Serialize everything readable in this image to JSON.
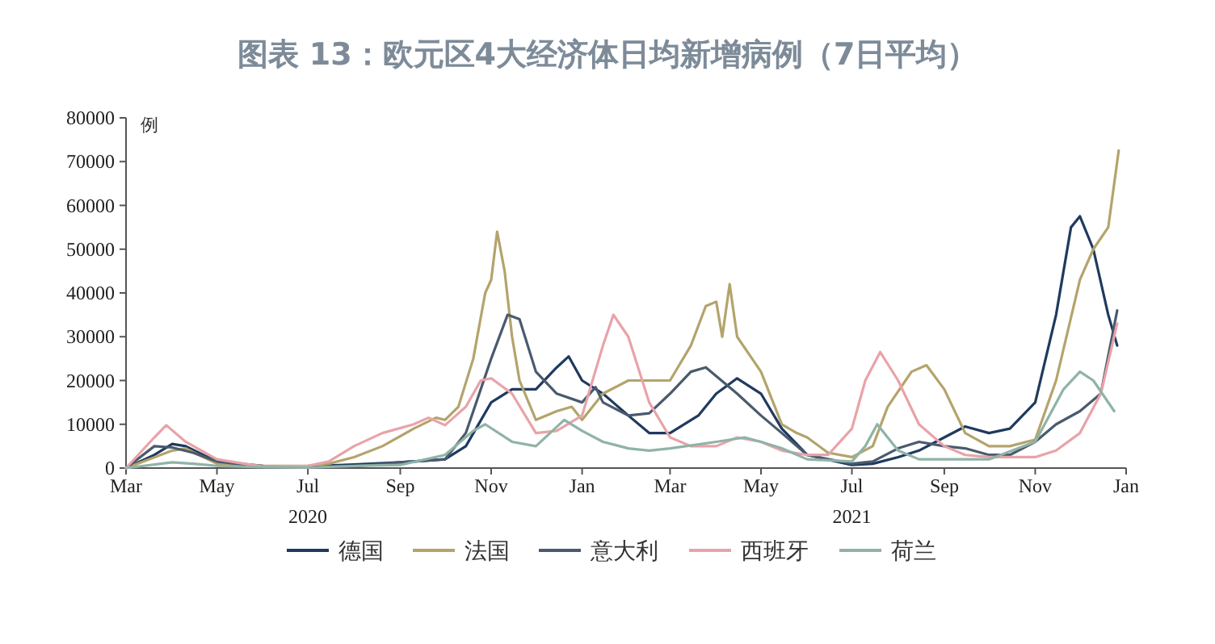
{
  "chart_data": {
    "type": "line",
    "title": "图表 13：欧元区4大经济体日均新增病例（7日平均）",
    "ylabel": "例",
    "xlim": [
      "2020-03-01",
      "2022-01-01"
    ],
    "xticks": [
      {
        "value": "2020-03-01",
        "label": "Mar"
      },
      {
        "value": "2020-05-01",
        "label": "May"
      },
      {
        "value": "2020-07-01",
        "label": "Jul\n2020"
      },
      {
        "value": "2020-09-01",
        "label": "Sep"
      },
      {
        "value": "2020-11-01",
        "label": "Nov"
      },
      {
        "value": "2021-01-01",
        "label": "Jan"
      },
      {
        "value": "2021-03-01",
        "label": "Mar"
      },
      {
        "value": "2021-05-01",
        "label": "May"
      },
      {
        "value": "2021-07-01",
        "label": "Jul\n2021"
      },
      {
        "value": "2021-09-01",
        "label": "Sep"
      },
      {
        "value": "2021-11-01",
        "label": "Nov"
      },
      {
        "value": "2022-01-01",
        "label": "Jan"
      }
    ],
    "ylim": [
      0,
      80000
    ],
    "yticks": [
      0,
      10000,
      20000,
      30000,
      40000,
      50000,
      60000,
      70000,
      80000
    ],
    "grid": false,
    "legend": "bottom",
    "marker": "none",
    "line_style": "solid",
    "series": [
      {
        "name": "德国",
        "color": "#1f3a5f",
        "x": [
          "2020-03-01",
          "2020-03-20",
          "2020-04-01",
          "2020-04-10",
          "2020-05-01",
          "2020-06-01",
          "2020-07-01",
          "2020-08-01",
          "2020-09-01",
          "2020-10-01",
          "2020-10-15",
          "2020-11-01",
          "2020-11-15",
          "2020-12-01",
          "2020-12-15",
          "2020-12-23",
          "2021-01-01",
          "2021-01-15",
          "2021-02-01",
          "2021-02-15",
          "2021-03-01",
          "2021-03-20",
          "2021-04-01",
          "2021-04-15",
          "2021-05-01",
          "2021-05-15",
          "2021-06-01",
          "2021-07-01",
          "2021-07-15",
          "2021-08-01",
          "2021-08-15",
          "2021-09-01",
          "2021-09-15",
          "2021-10-01",
          "2021-10-15",
          "2021-11-01",
          "2021-11-15",
          "2021-11-25",
          "2021-12-01",
          "2021-12-10",
          "2021-12-20",
          "2021-12-26"
        ],
        "values": [
          0,
          3000,
          5500,
          5000,
          1500,
          500,
          400,
          800,
          1300,
          2000,
          5000,
          15000,
          18000,
          18000,
          23000,
          25500,
          20000,
          17000,
          12000,
          8000,
          8000,
          12000,
          17000,
          20500,
          17000,
          9000,
          3000,
          700,
          1000,
          2500,
          4000,
          7000,
          9500,
          8000,
          9000,
          15000,
          35000,
          55000,
          57500,
          50000,
          35000,
          28000
        ]
      },
      {
        "name": "法国",
        "color": "#b3a46c",
        "x": [
          "2020-03-01",
          "2020-04-01",
          "2020-04-10",
          "2020-05-01",
          "2020-06-01",
          "2020-07-01",
          "2020-07-15",
          "2020-08-01",
          "2020-08-20",
          "2020-09-10",
          "2020-09-25",
          "2020-10-01",
          "2020-10-10",
          "2020-10-20",
          "2020-10-28",
          "2020-11-01",
          "2020-11-05",
          "2020-11-10",
          "2020-11-15",
          "2020-11-20",
          "2020-12-01",
          "2020-12-15",
          "2020-12-25",
          "2021-01-01",
          "2021-01-15",
          "2021-02-01",
          "2021-02-15",
          "2021-03-01",
          "2021-03-15",
          "2021-03-25",
          "2021-04-01",
          "2021-04-05",
          "2021-04-10",
          "2021-04-15",
          "2021-05-01",
          "2021-05-15",
          "2021-05-25",
          "2021-06-01",
          "2021-06-15",
          "2021-07-01",
          "2021-07-15",
          "2021-07-25",
          "2021-08-10",
          "2021-08-20",
          "2021-09-01",
          "2021-09-15",
          "2021-10-01",
          "2021-10-15",
          "2021-11-01",
          "2021-11-15",
          "2021-12-01",
          "2021-12-10",
          "2021-12-20",
          "2021-12-27"
        ],
        "values": [
          0,
          4000,
          4500,
          1000,
          500,
          500,
          1000,
          2500,
          5000,
          9000,
          11500,
          11000,
          14000,
          25000,
          40000,
          43000,
          54000,
          45000,
          30000,
          20000,
          11000,
          13000,
          14000,
          11000,
          17000,
          20000,
          20000,
          20000,
          28000,
          37000,
          38000,
          30000,
          42000,
          30000,
          22000,
          10000,
          8000,
          7000,
          3500,
          2500,
          5000,
          14000,
          22000,
          23500,
          18000,
          8000,
          5000,
          5000,
          6500,
          20000,
          43000,
          50000,
          55000,
          72500
        ]
      },
      {
        "name": "意大利",
        "color": "#4a5a6e",
        "x": [
          "2020-03-01",
          "2020-03-20",
          "2020-04-01",
          "2020-04-15",
          "2020-05-01",
          "2020-06-01",
          "2020-07-01",
          "2020-08-01",
          "2020-09-01",
          "2020-10-01",
          "2020-10-15",
          "2020-11-01",
          "2020-11-12",
          "2020-11-20",
          "2020-12-01",
          "2020-12-15",
          "2021-01-01",
          "2021-01-10",
          "2021-01-15",
          "2021-02-01",
          "2021-02-15",
          "2021-03-01",
          "2021-03-15",
          "2021-03-25",
          "2021-04-15",
          "2021-05-01",
          "2021-05-15",
          "2021-06-01",
          "2021-07-01",
          "2021-07-15",
          "2021-08-01",
          "2021-08-15",
          "2021-09-01",
          "2021-09-15",
          "2021-10-01",
          "2021-10-15",
          "2021-11-01",
          "2021-11-15",
          "2021-12-01",
          "2021-12-15",
          "2021-12-26"
        ],
        "values": [
          0,
          5000,
          4700,
          3500,
          1500,
          300,
          200,
          400,
          1300,
          2000,
          8000,
          25000,
          35000,
          34000,
          22000,
          17000,
          15000,
          18500,
          15000,
          12000,
          12500,
          17000,
          22000,
          23000,
          17000,
          12000,
          8000,
          3000,
          1000,
          1500,
          4500,
          6000,
          5000,
          4500,
          3000,
          3000,
          6000,
          10000,
          13000,
          17000,
          36000
        ]
      },
      {
        "name": "西班牙",
        "color": "#e8a3a8",
        "x": [
          "2020-03-01",
          "2020-03-20",
          "2020-03-28",
          "2020-04-10",
          "2020-05-01",
          "2020-06-01",
          "2020-07-01",
          "2020-07-15",
          "2020-08-01",
          "2020-08-20",
          "2020-09-10",
          "2020-09-20",
          "2020-10-01",
          "2020-10-15",
          "2020-10-25",
          "2020-11-01",
          "2020-11-15",
          "2020-12-01",
          "2020-12-15",
          "2021-01-01",
          "2021-01-15",
          "2021-01-22",
          "2021-02-01",
          "2021-02-15",
          "2021-03-01",
          "2021-03-15",
          "2021-04-01",
          "2021-04-15",
          "2021-05-01",
          "2021-05-15",
          "2021-06-01",
          "2021-06-15",
          "2021-07-01",
          "2021-07-10",
          "2021-07-20",
          "2021-08-01",
          "2021-08-15",
          "2021-09-01",
          "2021-09-15",
          "2021-10-01",
          "2021-10-15",
          "2021-11-01",
          "2021-11-15",
          "2021-12-01",
          "2021-12-15",
          "2021-12-26"
        ],
        "values": [
          0,
          7000,
          9800,
          6000,
          2000,
          300,
          500,
          1500,
          5000,
          8000,
          10000,
          11500,
          9800,
          14000,
          20000,
          20500,
          17000,
          8000,
          8500,
          12000,
          28000,
          35000,
          30000,
          15000,
          7000,
          5000,
          5000,
          7000,
          6000,
          4000,
          3000,
          3000,
          9000,
          20000,
          26500,
          20000,
          10000,
          5000,
          3000,
          2500,
          2500,
          2500,
          4000,
          8000,
          17000,
          33000
        ]
      },
      {
        "name": "荷兰",
        "color": "#8fb3a8",
        "x": [
          "2020-03-01",
          "2020-04-01",
          "2020-04-15",
          "2020-05-01",
          "2020-06-01",
          "2020-07-01",
          "2020-08-01",
          "2020-09-01",
          "2020-10-01",
          "2020-10-20",
          "2020-10-28",
          "2020-11-15",
          "2020-12-01",
          "2020-12-20",
          "2021-01-01",
          "2021-01-15",
          "2021-02-01",
          "2021-02-15",
          "2021-03-01",
          "2021-04-01",
          "2021-04-20",
          "2021-05-01",
          "2021-05-15",
          "2021-06-01",
          "2021-07-01",
          "2021-07-10",
          "2021-07-18",
          "2021-08-01",
          "2021-08-15",
          "2021-09-01",
          "2021-10-01",
          "2021-11-01",
          "2021-11-20",
          "2021-12-01",
          "2021-12-10",
          "2021-12-24"
        ],
        "values": [
          0,
          1300,
          1000,
          500,
          200,
          100,
          500,
          700,
          3000,
          8500,
          10000,
          6000,
          5000,
          11000,
          8500,
          6000,
          4500,
          4000,
          4500,
          6000,
          7000,
          6000,
          4500,
          2000,
          1500,
          5000,
          10000,
          4000,
          2000,
          2000,
          2000,
          6000,
          18000,
          22000,
          20000,
          13000
        ]
      }
    ]
  }
}
